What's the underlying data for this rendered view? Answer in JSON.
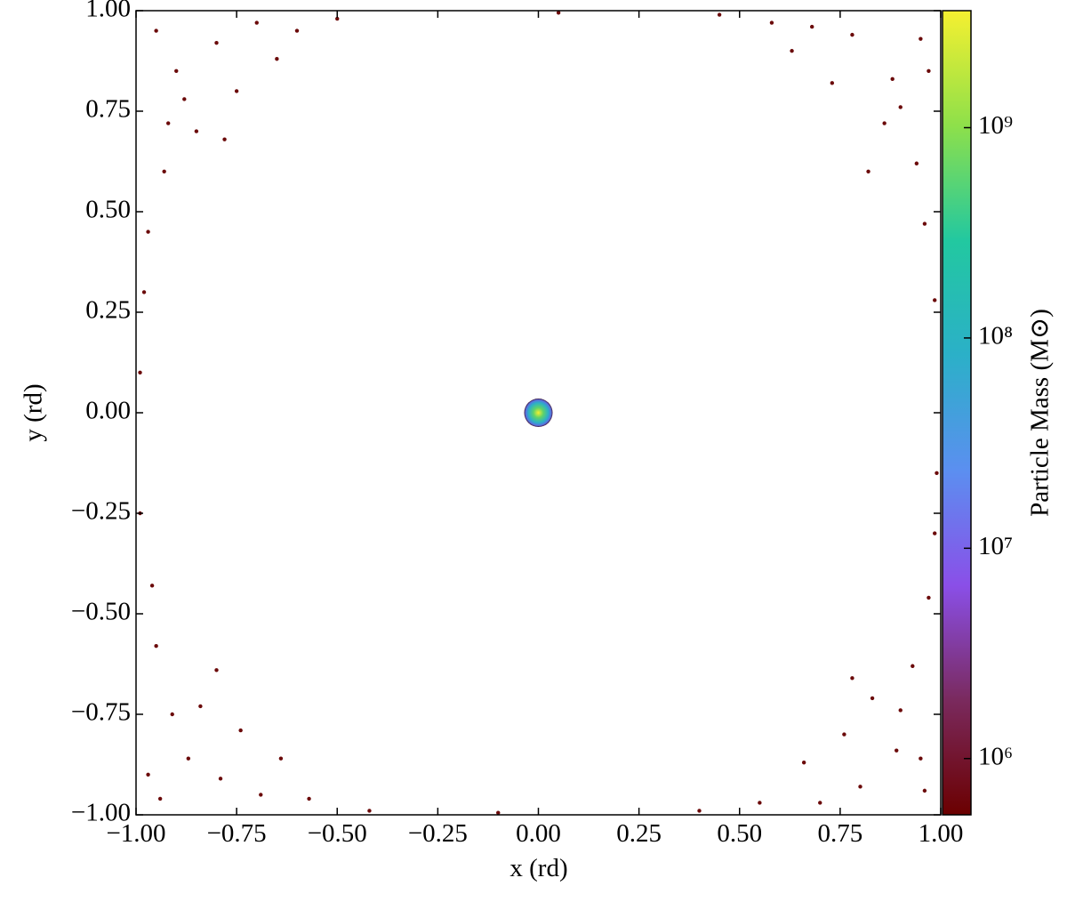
{
  "chart_data": {
    "type": "scatter",
    "xlabel": "x  (rd)",
    "ylabel": "y  (rd)",
    "xlim": [
      -1,
      1
    ],
    "ylim": [
      -1,
      1
    ],
    "xticks": [
      {
        "value": -1,
        "label": "−1.00"
      },
      {
        "value": -0.75,
        "label": "−0.75"
      },
      {
        "value": -0.5,
        "label": "−0.50"
      },
      {
        "value": -0.25,
        "label": "−0.25"
      },
      {
        "value": 0,
        "label": "0.00"
      },
      {
        "value": 0.25,
        "label": "0.25"
      },
      {
        "value": 0.5,
        "label": "0.50"
      },
      {
        "value": 0.75,
        "label": "0.75"
      },
      {
        "value": 1,
        "label": "1.00"
      }
    ],
    "yticks": [
      {
        "value": -1,
        "label": "−1.00"
      },
      {
        "value": -0.75,
        "label": "−0.75"
      },
      {
        "value": -0.5,
        "label": "−0.50"
      },
      {
        "value": -0.25,
        "label": "−0.25"
      },
      {
        "value": 0,
        "label": "0.00"
      },
      {
        "value": 0.25,
        "label": "0.25"
      },
      {
        "value": 0.5,
        "label": "0.50"
      },
      {
        "value": 0.75,
        "label": "0.75"
      },
      {
        "value": 1,
        "label": "1.00"
      }
    ],
    "series": [
      {
        "color": "#6b0a0a",
        "x": [
          -0.95,
          -0.9,
          -0.8,
          -0.7,
          -0.85,
          -0.93,
          -0.97,
          -0.6,
          -0.75,
          -0.88,
          -0.5,
          -0.98,
          -0.65,
          -0.92,
          -0.78,
          0.95,
          0.88,
          0.78,
          0.68,
          0.86,
          0.94,
          0.96,
          0.58,
          0.73,
          0.9,
          0.45,
          0.985,
          0.63,
          0.82,
          0.97,
          -0.94,
          -0.87,
          -0.79,
          -0.69,
          -0.84,
          -0.95,
          -0.96,
          -0.57,
          -0.74,
          -0.91,
          -0.42,
          -0.99,
          -0.64,
          -0.8,
          -0.97,
          0.96,
          0.89,
          0.8,
          0.7,
          0.83,
          0.93,
          0.97,
          0.55,
          0.76,
          0.9,
          0.4,
          0.985,
          0.66,
          0.78,
          0.95,
          -0.99,
          0.99,
          0.05,
          -0.1
        ],
        "y": [
          0.95,
          0.85,
          0.92,
          0.97,
          0.7,
          0.6,
          0.45,
          0.95,
          0.8,
          0.78,
          0.98,
          0.3,
          0.88,
          0.72,
          0.68,
          0.93,
          0.83,
          0.94,
          0.96,
          0.72,
          0.62,
          0.47,
          0.97,
          0.82,
          0.76,
          0.99,
          0.28,
          0.9,
          0.6,
          0.85,
          -0.96,
          -0.86,
          -0.91,
          -0.95,
          -0.73,
          -0.58,
          -0.43,
          -0.96,
          -0.79,
          -0.75,
          -0.99,
          -0.25,
          -0.86,
          -0.64,
          -0.9,
          -0.94,
          -0.84,
          -0.93,
          -0.97,
          -0.71,
          -0.63,
          -0.46,
          -0.97,
          -0.8,
          -0.74,
          -0.99,
          -0.3,
          -0.87,
          -0.66,
          -0.86,
          0.1,
          -0.15,
          0.995,
          -0.995
        ]
      },
      {
        "color": "url(#blob)",
        "x": [
          0
        ],
        "y": [
          0
        ]
      }
    ],
    "colorbar": {
      "label": "Particle Mass  (M⊙)",
      "log": true,
      "clim": [
        540000,
        3600000000
      ],
      "ticks": [
        {
          "value": 1000000,
          "label": "10⁶"
        },
        {
          "value": 10000000,
          "label": "10⁷"
        },
        {
          "value": 100000000,
          "label": "10⁸"
        },
        {
          "value": 1000000000,
          "label": "10⁹"
        }
      ],
      "colormap": [
        "#6b0000",
        "#7a2a5e",
        "#8a4fe8",
        "#5b8ff0",
        "#2bb0c8",
        "#22c8a0",
        "#8ee04a",
        "#f5f030"
      ]
    }
  }
}
